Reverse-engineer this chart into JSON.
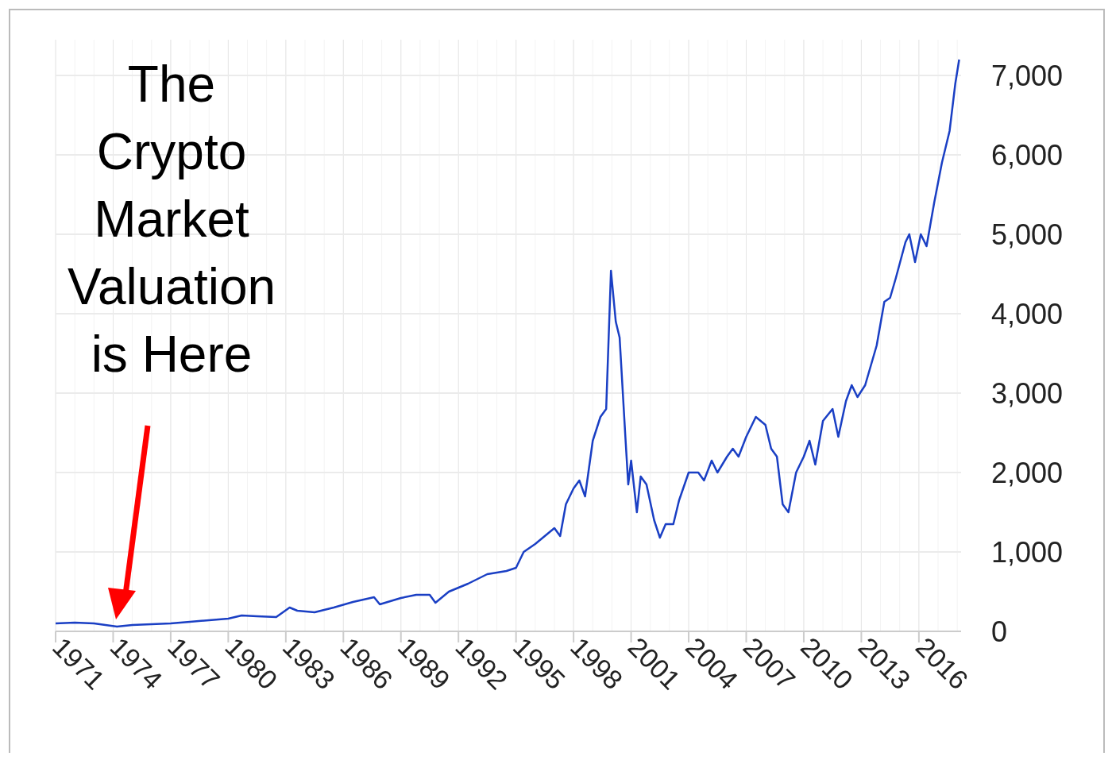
{
  "chart_data": {
    "type": "line",
    "x": [
      1971,
      1972,
      1973,
      1974.2,
      1975,
      1976,
      1977,
      1978,
      1979,
      1980,
      1980.7,
      1981.5,
      1982.5,
      1983.2,
      1983.6,
      1984.5,
      1985.5,
      1986.5,
      1987.6,
      1987.9,
      1989,
      1989.8,
      1990.5,
      1990.8,
      1991.5,
      1992.5,
      1993.5,
      1994.5,
      1995,
      1995.4,
      1996,
      1996.5,
      1997,
      1997.3,
      1997.6,
      1998,
      1998.3,
      1998.6,
      1999,
      1999.4,
      1999.7,
      1999.95,
      2000.2,
      2000.4,
      2000.7,
      2000.85,
      2001,
      2001.3,
      2001.5,
      2001.8,
      2002.2,
      2002.5,
      2002.8,
      2003.2,
      2003.5,
      2004,
      2004.5,
      2004.8,
      2005.2,
      2005.5,
      2006,
      2006.3,
      2006.6,
      2007,
      2007.5,
      2008,
      2008.3,
      2008.6,
      2008.9,
      2009.2,
      2009.6,
      2010,
      2010.3,
      2010.6,
      2011,
      2011.5,
      2011.8,
      2012.2,
      2012.5,
      2012.8,
      2013.2,
      2013.8,
      2014.2,
      2014.5,
      2014.8,
      2015.3,
      2015.5,
      2015.8,
      2016.1,
      2016.4,
      2016.8,
      2017.2,
      2017.6,
      2017.9,
      2018.1
    ],
    "series": [
      {
        "color": "#1a3fc4",
        "values": [
          100,
          110,
          100,
          60,
          80,
          90,
          100,
          120,
          140,
          160,
          200,
          190,
          180,
          300,
          260,
          240,
          300,
          370,
          430,
          340,
          420,
          460,
          460,
          360,
          500,
          600,
          720,
          760,
          800,
          1000,
          1100,
          1200,
          1300,
          1200,
          1600,
          1800,
          1900,
          1700,
          2400,
          2700,
          2800,
          4540,
          3900,
          3700,
          2450,
          1850,
          2150,
          1500,
          1950,
          1850,
          1400,
          1180,
          1350,
          1350,
          1650,
          2000,
          2000,
          1900,
          2150,
          2000,
          2200,
          2300,
          2200,
          2450,
          2700,
          2600,
          2300,
          2200,
          1600,
          1500,
          2000,
          2200,
          2400,
          2100,
          2650,
          2800,
          2450,
          2900,
          3100,
          2950,
          3100,
          3600,
          4150,
          4200,
          4450,
          4900,
          5000,
          4650,
          5000,
          4850,
          5400,
          5900,
          6300,
          6900,
          7200
        ]
      }
    ],
    "xlim": [
      1971,
      2018.2
    ],
    "xticks": [
      1971,
      1974,
      1977,
      1980,
      1983,
      1986,
      1989,
      1992,
      1995,
      1998,
      2001,
      2004,
      2007,
      2010,
      2013,
      2016
    ],
    "ylim": [
      0,
      7450
    ],
    "yticks": [
      0,
      {
        "value": 1000,
        "label": "1,000"
      },
      {
        "value": 2000,
        "label": "2,000"
      },
      {
        "value": 3000,
        "label": "3,000"
      },
      {
        "value": 4000,
        "label": "4,000"
      },
      {
        "value": 5000,
        "label": "5,000"
      },
      {
        "value": 6000,
        "label": "6,000"
      },
      {
        "value": 7000,
        "label": "7,000"
      }
    ],
    "grid": true,
    "annotations": [
      "The\nCrypto\nMarket\nValuation\nis Here"
    ]
  }
}
